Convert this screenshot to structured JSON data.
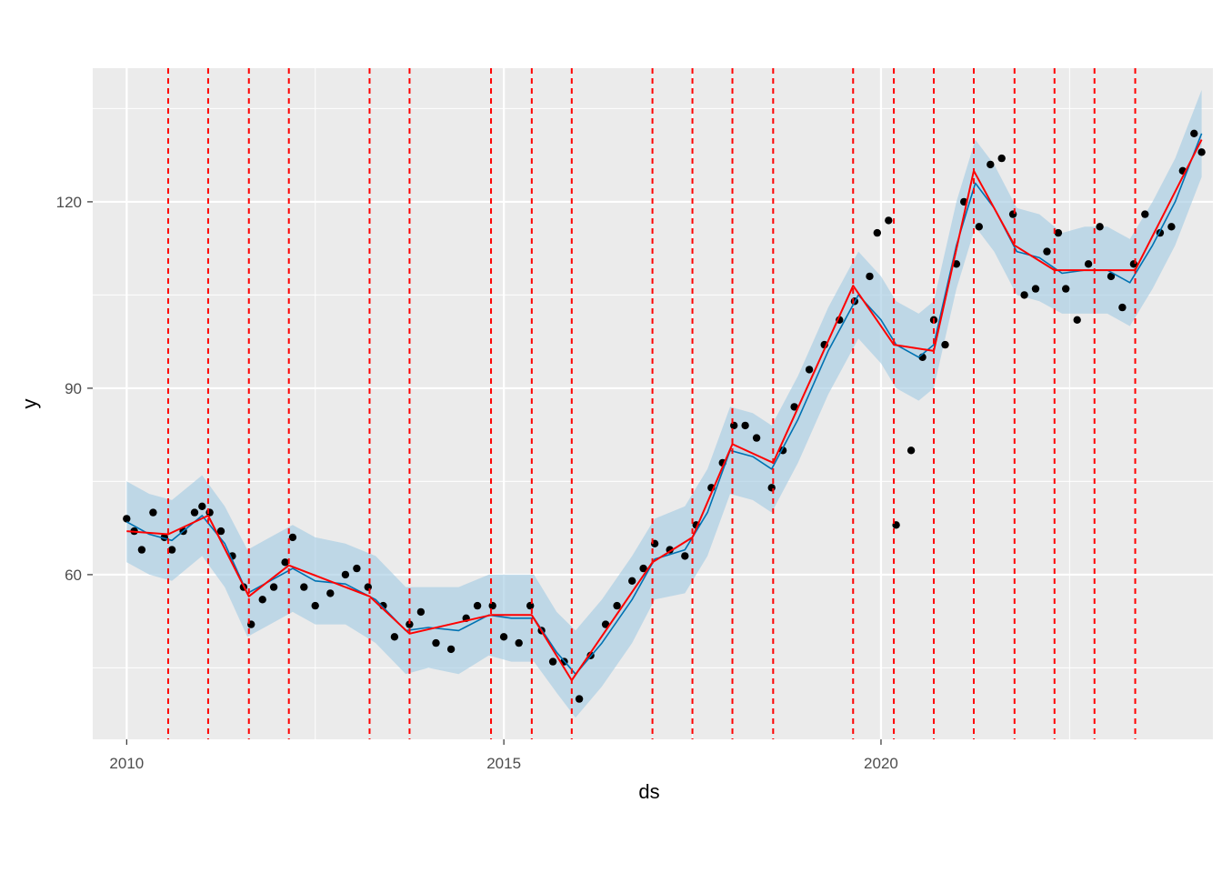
{
  "chart_data": {
    "type": "line",
    "xlabel": "ds",
    "ylabel": "y",
    "xlim": [
      2009.55,
      2024.4
    ],
    "ylim": [
      33.5,
      141.5
    ],
    "x_ticks": [
      2010,
      2015,
      2020
    ],
    "x_tick_labels": [
      "2010",
      "2015",
      "2020"
    ],
    "y_ticks": [
      60,
      90,
      120
    ],
    "y_tick_labels": [
      "60",
      "90",
      "120"
    ],
    "grid": true,
    "legend": "none",
    "colors": {
      "panel": "#ebebeb",
      "grid": "#ffffff",
      "points": "#000000",
      "forecast": "#0072b2",
      "band": "#a6cde3",
      "trend": "#ff0000",
      "changepoints": "#ff0000"
    },
    "series": [
      {
        "kind": "observed-points",
        "points": [
          [
            2010.0,
            69
          ],
          [
            2010.1,
            67
          ],
          [
            2010.2,
            64
          ],
          [
            2010.35,
            70
          ],
          [
            2010.5,
            66
          ],
          [
            2010.6,
            64
          ],
          [
            2010.75,
            67
          ],
          [
            2010.9,
            70
          ],
          [
            2011.0,
            71
          ],
          [
            2011.1,
            70
          ],
          [
            2011.25,
            67
          ],
          [
            2011.4,
            63
          ],
          [
            2011.55,
            58
          ],
          [
            2011.65,
            52
          ],
          [
            2011.8,
            56
          ],
          [
            2011.95,
            58
          ],
          [
            2012.1,
            62
          ],
          [
            2012.2,
            66
          ],
          [
            2012.35,
            58
          ],
          [
            2012.5,
            55
          ],
          [
            2012.7,
            57
          ],
          [
            2012.9,
            60
          ],
          [
            2013.05,
            61
          ],
          [
            2013.2,
            58
          ],
          [
            2013.4,
            55
          ],
          [
            2013.55,
            50
          ],
          [
            2013.75,
            52
          ],
          [
            2013.9,
            54
          ],
          [
            2014.1,
            49
          ],
          [
            2014.3,
            48
          ],
          [
            2014.5,
            53
          ],
          [
            2014.65,
            55
          ],
          [
            2014.85,
            55
          ],
          [
            2015.0,
            50
          ],
          [
            2015.2,
            49
          ],
          [
            2015.35,
            55
          ],
          [
            2015.5,
            51
          ],
          [
            2015.65,
            46
          ],
          [
            2015.8,
            46
          ],
          [
            2016.0,
            40
          ],
          [
            2016.15,
            47
          ],
          [
            2016.35,
            52
          ],
          [
            2016.5,
            55
          ],
          [
            2016.7,
            59
          ],
          [
            2016.85,
            61
          ],
          [
            2017.0,
            65
          ],
          [
            2017.2,
            64
          ],
          [
            2017.4,
            63
          ],
          [
            2017.55,
            68
          ],
          [
            2017.75,
            74
          ],
          [
            2017.9,
            78
          ],
          [
            2018.05,
            84
          ],
          [
            2018.2,
            84
          ],
          [
            2018.35,
            82
          ],
          [
            2018.55,
            74
          ],
          [
            2018.7,
            80
          ],
          [
            2018.85,
            87
          ],
          [
            2019.05,
            93
          ],
          [
            2019.25,
            97
          ],
          [
            2019.45,
            101
          ],
          [
            2019.65,
            104
          ],
          [
            2019.85,
            108
          ],
          [
            2019.95,
            115
          ],
          [
            2020.1,
            117
          ],
          [
            2020.2,
            68
          ],
          [
            2020.4,
            80
          ],
          [
            2020.55,
            95
          ],
          [
            2020.7,
            101
          ],
          [
            2020.85,
            97
          ],
          [
            2021.0,
            110
          ],
          [
            2021.1,
            120
          ],
          [
            2021.3,
            116
          ],
          [
            2021.45,
            126
          ],
          [
            2021.6,
            127
          ],
          [
            2021.75,
            118
          ],
          [
            2021.9,
            105
          ],
          [
            2022.05,
            106
          ],
          [
            2022.2,
            112
          ],
          [
            2022.35,
            115
          ],
          [
            2022.45,
            106
          ],
          [
            2022.6,
            101
          ],
          [
            2022.75,
            110
          ],
          [
            2022.9,
            116
          ],
          [
            2023.05,
            108
          ],
          [
            2023.2,
            103
          ],
          [
            2023.35,
            110
          ],
          [
            2023.5,
            118
          ],
          [
            2023.7,
            115
          ],
          [
            2023.85,
            116
          ],
          [
            2024.0,
            125
          ],
          [
            2024.15,
            131
          ],
          [
            2024.25,
            128
          ]
        ]
      },
      {
        "kind": "forecast-line",
        "points": [
          [
            2010.0,
            68.5
          ],
          [
            2010.3,
            66.5
          ],
          [
            2010.6,
            65.5
          ],
          [
            2011.0,
            69.5
          ],
          [
            2011.3,
            65
          ],
          [
            2011.6,
            57
          ],
          [
            2011.9,
            59
          ],
          [
            2012.2,
            61
          ],
          [
            2012.5,
            59
          ],
          [
            2012.9,
            58.5
          ],
          [
            2013.3,
            56
          ],
          [
            2013.7,
            51
          ],
          [
            2014.0,
            51.5
          ],
          [
            2014.4,
            51
          ],
          [
            2014.8,
            53.5
          ],
          [
            2015.1,
            53
          ],
          [
            2015.4,
            53
          ],
          [
            2015.7,
            47.5
          ],
          [
            2015.95,
            44
          ],
          [
            2016.3,
            49
          ],
          [
            2016.7,
            56
          ],
          [
            2017.0,
            62.5
          ],
          [
            2017.4,
            64
          ],
          [
            2017.7,
            70
          ],
          [
            2018.0,
            80
          ],
          [
            2018.3,
            79
          ],
          [
            2018.55,
            77
          ],
          [
            2018.9,
            85
          ],
          [
            2019.3,
            96
          ],
          [
            2019.7,
            105
          ],
          [
            2020.0,
            101
          ],
          [
            2020.2,
            97
          ],
          [
            2020.5,
            95
          ],
          [
            2020.7,
            97
          ],
          [
            2021.0,
            113
          ],
          [
            2021.25,
            123
          ],
          [
            2021.5,
            119
          ],
          [
            2021.8,
            112
          ],
          [
            2022.1,
            111
          ],
          [
            2022.4,
            108.5
          ],
          [
            2022.7,
            109
          ],
          [
            2023.0,
            109
          ],
          [
            2023.3,
            107
          ],
          [
            2023.6,
            113
          ],
          [
            2023.9,
            120
          ],
          [
            2024.25,
            131
          ]
        ]
      },
      {
        "kind": "uncertainty-band",
        "upper": [
          [
            2010.0,
            75
          ],
          [
            2010.3,
            73
          ],
          [
            2010.6,
            72
          ],
          [
            2011.0,
            76
          ],
          [
            2011.3,
            71
          ],
          [
            2011.6,
            64
          ],
          [
            2011.9,
            66
          ],
          [
            2012.2,
            68
          ],
          [
            2012.5,
            66
          ],
          [
            2012.9,
            65
          ],
          [
            2013.3,
            63
          ],
          [
            2013.7,
            58
          ],
          [
            2014.0,
            58
          ],
          [
            2014.4,
            58
          ],
          [
            2014.8,
            60
          ],
          [
            2015.1,
            60
          ],
          [
            2015.4,
            60
          ],
          [
            2015.7,
            54
          ],
          [
            2015.95,
            51
          ],
          [
            2016.3,
            56
          ],
          [
            2016.7,
            63
          ],
          [
            2017.0,
            69
          ],
          [
            2017.4,
            71
          ],
          [
            2017.7,
            77
          ],
          [
            2018.0,
            87
          ],
          [
            2018.3,
            86
          ],
          [
            2018.55,
            84
          ],
          [
            2018.9,
            92
          ],
          [
            2019.3,
            103
          ],
          [
            2019.7,
            112
          ],
          [
            2020.0,
            108
          ],
          [
            2020.2,
            104
          ],
          [
            2020.5,
            102
          ],
          [
            2020.7,
            104
          ],
          [
            2021.0,
            120
          ],
          [
            2021.25,
            130
          ],
          [
            2021.5,
            126
          ],
          [
            2021.8,
            119
          ],
          [
            2022.1,
            118
          ],
          [
            2022.4,
            115
          ],
          [
            2022.7,
            116
          ],
          [
            2023.0,
            116
          ],
          [
            2023.3,
            114
          ],
          [
            2023.6,
            120
          ],
          [
            2023.9,
            127
          ],
          [
            2024.25,
            138
          ]
        ],
        "lower": [
          [
            2010.0,
            62
          ],
          [
            2010.3,
            60
          ],
          [
            2010.6,
            59
          ],
          [
            2011.0,
            63
          ],
          [
            2011.3,
            58
          ],
          [
            2011.6,
            50
          ],
          [
            2011.9,
            52
          ],
          [
            2012.2,
            54
          ],
          [
            2012.5,
            52
          ],
          [
            2012.9,
            52
          ],
          [
            2013.3,
            49
          ],
          [
            2013.7,
            44
          ],
          [
            2014.0,
            45
          ],
          [
            2014.4,
            44
          ],
          [
            2014.8,
            47
          ],
          [
            2015.1,
            46
          ],
          [
            2015.4,
            46
          ],
          [
            2015.7,
            41
          ],
          [
            2015.95,
            37
          ],
          [
            2016.3,
            42
          ],
          [
            2016.7,
            49
          ],
          [
            2017.0,
            56
          ],
          [
            2017.4,
            57
          ],
          [
            2017.7,
            63
          ],
          [
            2018.0,
            73
          ],
          [
            2018.3,
            72
          ],
          [
            2018.55,
            70
          ],
          [
            2018.9,
            78
          ],
          [
            2019.3,
            89
          ],
          [
            2019.7,
            98
          ],
          [
            2020.0,
            94
          ],
          [
            2020.2,
            90
          ],
          [
            2020.5,
            88
          ],
          [
            2020.7,
            90
          ],
          [
            2021.0,
            106
          ],
          [
            2021.25,
            116
          ],
          [
            2021.5,
            112
          ],
          [
            2021.8,
            105
          ],
          [
            2022.1,
            104
          ],
          [
            2022.4,
            102
          ],
          [
            2022.7,
            102
          ],
          [
            2023.0,
            102
          ],
          [
            2023.3,
            100
          ],
          [
            2023.6,
            106
          ],
          [
            2023.9,
            113
          ],
          [
            2024.25,
            124
          ]
        ]
      },
      {
        "kind": "trend-line",
        "points": [
          [
            2010.0,
            67
          ],
          [
            2010.55,
            66.5
          ],
          [
            2011.08,
            69.5
          ],
          [
            2011.62,
            56.5
          ],
          [
            2012.15,
            61.5
          ],
          [
            2013.22,
            56.5
          ],
          [
            2013.75,
            50.5
          ],
          [
            2014.83,
            53.5
          ],
          [
            2015.37,
            53.5
          ],
          [
            2015.9,
            43
          ],
          [
            2016.97,
            62
          ],
          [
            2017.5,
            66
          ],
          [
            2018.03,
            81
          ],
          [
            2018.57,
            78
          ],
          [
            2019.63,
            106.5
          ],
          [
            2020.17,
            97
          ],
          [
            2020.7,
            96
          ],
          [
            2021.23,
            125
          ],
          [
            2021.77,
            113
          ],
          [
            2022.3,
            109
          ],
          [
            2022.83,
            109
          ],
          [
            2023.37,
            109
          ],
          [
            2024.25,
            130
          ]
        ]
      }
    ],
    "changepoints": [
      2010.55,
      2011.08,
      2011.62,
      2012.15,
      2013.22,
      2013.75,
      2014.83,
      2015.37,
      2015.9,
      2016.97,
      2017.5,
      2018.03,
      2018.57,
      2019.63,
      2020.17,
      2020.7,
      2021.23,
      2021.77,
      2022.3,
      2022.83,
      2023.37
    ]
  }
}
